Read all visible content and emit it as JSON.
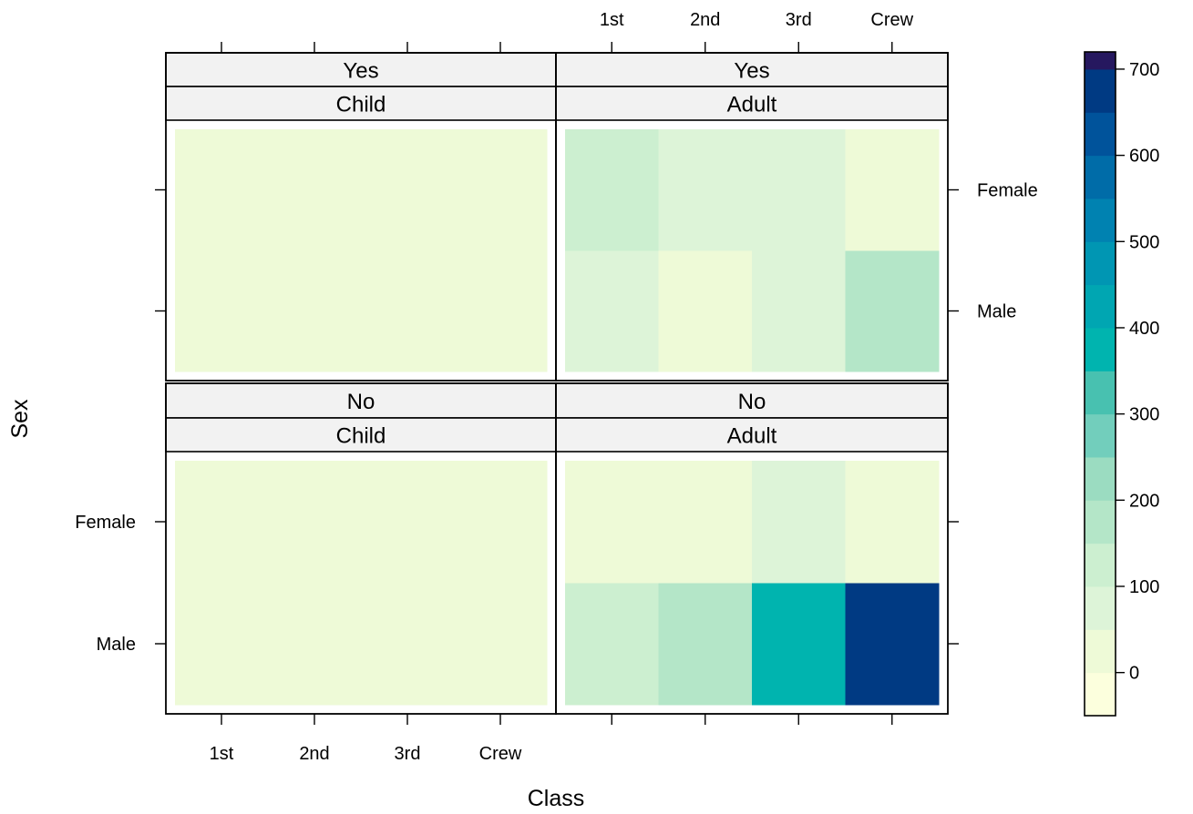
{
  "chart_data": {
    "type": "heatmap",
    "xlabel": "Class",
    "ylabel": "Sex",
    "x_categories": [
      "1st",
      "2nd",
      "3rd",
      "Crew"
    ],
    "y_categories": [
      "Male",
      "Female"
    ],
    "panels": [
      {
        "strip_top": "Yes",
        "strip_bottom": "Child",
        "values": {
          "Male": [
            5,
            11,
            13,
            0
          ],
          "Female": [
            1,
            13,
            14,
            0
          ]
        }
      },
      {
        "strip_top": "Yes",
        "strip_bottom": "Adult",
        "values": {
          "Male": [
            57,
            14,
            75,
            192
          ],
          "Female": [
            140,
            80,
            76,
            20
          ]
        }
      },
      {
        "strip_top": "No",
        "strip_bottom": "Child",
        "values": {
          "Male": [
            0,
            0,
            35,
            0
          ],
          "Female": [
            0,
            0,
            17,
            0
          ]
        }
      },
      {
        "strip_top": "No",
        "strip_bottom": "Adult",
        "values": {
          "Male": [
            118,
            154,
            387,
            670
          ],
          "Female": [
            4,
            13,
            89,
            3
          ]
        }
      }
    ],
    "colorbar": {
      "range": [
        -50,
        720
      ],
      "breaks": [
        -50,
        0,
        50,
        100,
        150,
        200,
        250,
        300,
        350,
        400,
        450,
        500,
        550,
        600,
        650,
        700,
        720
      ],
      "colors": [
        "#FCFFDD",
        "#EEFAD7",
        "#DDF4D8",
        "#CCEFD0",
        "#B4E6C8",
        "#9BDCC1",
        "#72CEBC",
        "#48C1B0",
        "#00B4AF",
        "#00A6B2",
        "#0096B3",
        "#0082B1",
        "#006CA8",
        "#00539B",
        "#003A83",
        "#26185F"
      ],
      "ticks": [
        0,
        100,
        200,
        300,
        400,
        500,
        600,
        700
      ]
    },
    "grid": false,
    "legend": "right"
  }
}
